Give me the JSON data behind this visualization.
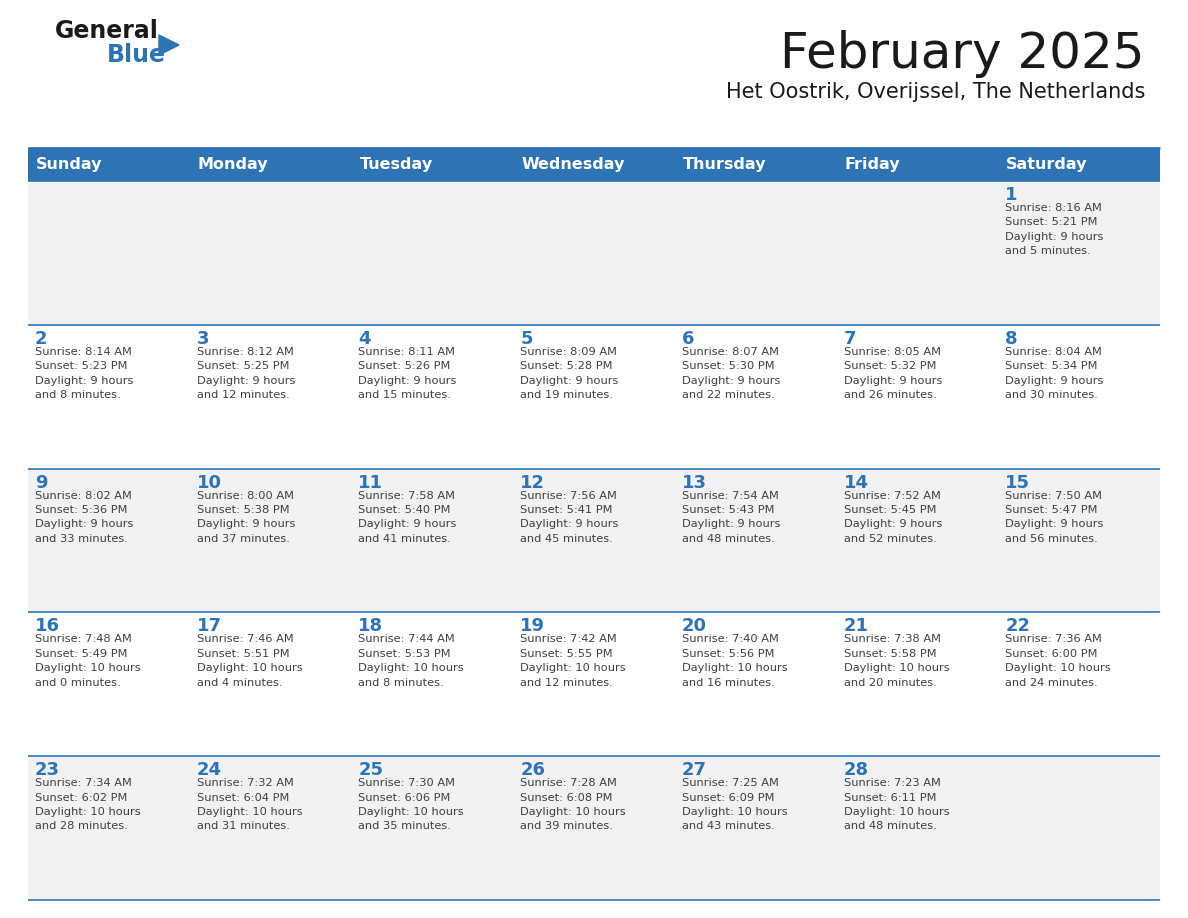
{
  "title": "February 2025",
  "subtitle": "Het Oostrik, Overijssel, The Netherlands",
  "days_of_week": [
    "Sunday",
    "Monday",
    "Tuesday",
    "Wednesday",
    "Thursday",
    "Friday",
    "Saturday"
  ],
  "header_bg": "#2E74B5",
  "header_text": "#FFFFFF",
  "cell_bg_light": "#FFFFFF",
  "cell_bg_dark": "#F2F2F2",
  "day_number_color": "#2E74B5",
  "text_color": "#404040",
  "border_color": "#2E74B5",
  "title_color": "#1a1a1a",
  "subtitle_color": "#1a1a1a",
  "logo_general_color": "#1a1a1a",
  "logo_blue_color": "#2E74B5",
  "calendar_data": [
    [
      {
        "day": 0,
        "info": ""
      },
      {
        "day": 0,
        "info": ""
      },
      {
        "day": 0,
        "info": ""
      },
      {
        "day": 0,
        "info": ""
      },
      {
        "day": 0,
        "info": ""
      },
      {
        "day": 0,
        "info": ""
      },
      {
        "day": 1,
        "info": "Sunrise: 8:16 AM\nSunset: 5:21 PM\nDaylight: 9 hours\nand 5 minutes."
      }
    ],
    [
      {
        "day": 2,
        "info": "Sunrise: 8:14 AM\nSunset: 5:23 PM\nDaylight: 9 hours\nand 8 minutes."
      },
      {
        "day": 3,
        "info": "Sunrise: 8:12 AM\nSunset: 5:25 PM\nDaylight: 9 hours\nand 12 minutes."
      },
      {
        "day": 4,
        "info": "Sunrise: 8:11 AM\nSunset: 5:26 PM\nDaylight: 9 hours\nand 15 minutes."
      },
      {
        "day": 5,
        "info": "Sunrise: 8:09 AM\nSunset: 5:28 PM\nDaylight: 9 hours\nand 19 minutes."
      },
      {
        "day": 6,
        "info": "Sunrise: 8:07 AM\nSunset: 5:30 PM\nDaylight: 9 hours\nand 22 minutes."
      },
      {
        "day": 7,
        "info": "Sunrise: 8:05 AM\nSunset: 5:32 PM\nDaylight: 9 hours\nand 26 minutes."
      },
      {
        "day": 8,
        "info": "Sunrise: 8:04 AM\nSunset: 5:34 PM\nDaylight: 9 hours\nand 30 minutes."
      }
    ],
    [
      {
        "day": 9,
        "info": "Sunrise: 8:02 AM\nSunset: 5:36 PM\nDaylight: 9 hours\nand 33 minutes."
      },
      {
        "day": 10,
        "info": "Sunrise: 8:00 AM\nSunset: 5:38 PM\nDaylight: 9 hours\nand 37 minutes."
      },
      {
        "day": 11,
        "info": "Sunrise: 7:58 AM\nSunset: 5:40 PM\nDaylight: 9 hours\nand 41 minutes."
      },
      {
        "day": 12,
        "info": "Sunrise: 7:56 AM\nSunset: 5:41 PM\nDaylight: 9 hours\nand 45 minutes."
      },
      {
        "day": 13,
        "info": "Sunrise: 7:54 AM\nSunset: 5:43 PM\nDaylight: 9 hours\nand 48 minutes."
      },
      {
        "day": 14,
        "info": "Sunrise: 7:52 AM\nSunset: 5:45 PM\nDaylight: 9 hours\nand 52 minutes."
      },
      {
        "day": 15,
        "info": "Sunrise: 7:50 AM\nSunset: 5:47 PM\nDaylight: 9 hours\nand 56 minutes."
      }
    ],
    [
      {
        "day": 16,
        "info": "Sunrise: 7:48 AM\nSunset: 5:49 PM\nDaylight: 10 hours\nand 0 minutes."
      },
      {
        "day": 17,
        "info": "Sunrise: 7:46 AM\nSunset: 5:51 PM\nDaylight: 10 hours\nand 4 minutes."
      },
      {
        "day": 18,
        "info": "Sunrise: 7:44 AM\nSunset: 5:53 PM\nDaylight: 10 hours\nand 8 minutes."
      },
      {
        "day": 19,
        "info": "Sunrise: 7:42 AM\nSunset: 5:55 PM\nDaylight: 10 hours\nand 12 minutes."
      },
      {
        "day": 20,
        "info": "Sunrise: 7:40 AM\nSunset: 5:56 PM\nDaylight: 10 hours\nand 16 minutes."
      },
      {
        "day": 21,
        "info": "Sunrise: 7:38 AM\nSunset: 5:58 PM\nDaylight: 10 hours\nand 20 minutes."
      },
      {
        "day": 22,
        "info": "Sunrise: 7:36 AM\nSunset: 6:00 PM\nDaylight: 10 hours\nand 24 minutes."
      }
    ],
    [
      {
        "day": 23,
        "info": "Sunrise: 7:34 AM\nSunset: 6:02 PM\nDaylight: 10 hours\nand 28 minutes."
      },
      {
        "day": 24,
        "info": "Sunrise: 7:32 AM\nSunset: 6:04 PM\nDaylight: 10 hours\nand 31 minutes."
      },
      {
        "day": 25,
        "info": "Sunrise: 7:30 AM\nSunset: 6:06 PM\nDaylight: 10 hours\nand 35 minutes."
      },
      {
        "day": 26,
        "info": "Sunrise: 7:28 AM\nSunset: 6:08 PM\nDaylight: 10 hours\nand 39 minutes."
      },
      {
        "day": 27,
        "info": "Sunrise: 7:25 AM\nSunset: 6:09 PM\nDaylight: 10 hours\nand 43 minutes."
      },
      {
        "day": 28,
        "info": "Sunrise: 7:23 AM\nSunset: 6:11 PM\nDaylight: 10 hours\nand 48 minutes."
      },
      {
        "day": 0,
        "info": ""
      }
    ]
  ]
}
